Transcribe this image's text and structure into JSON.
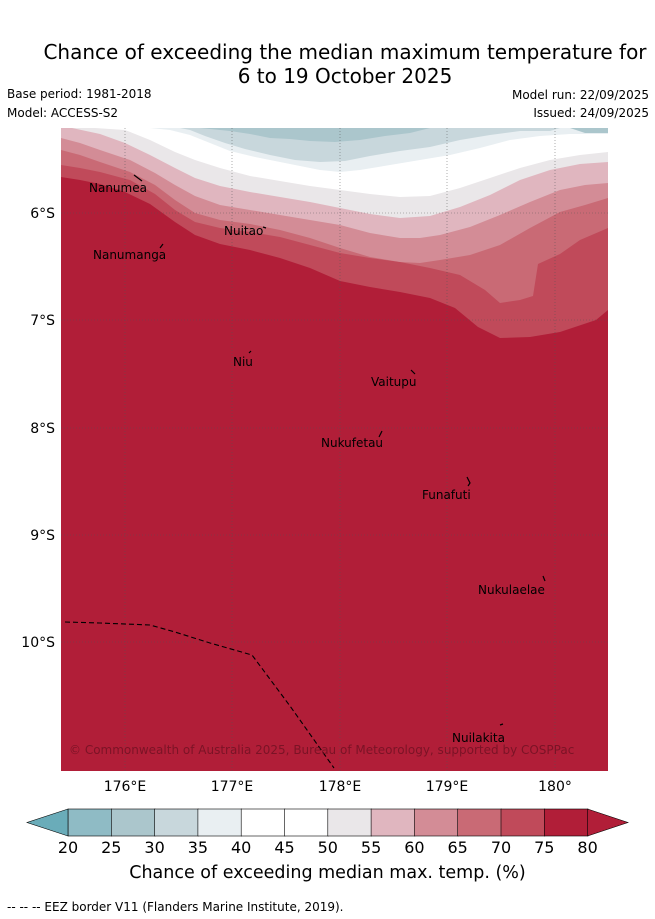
{
  "title": "Chance of exceeding the median maximum temperature for\n6 to 19 October 2025",
  "meta": {
    "base_period": "Base period: 1981-2018",
    "model": "Model: ACCESS-S2",
    "model_run": "Model run: 22/09/2025",
    "issued": "Issued: 24/09/2025"
  },
  "map": {
    "lon_ticks": [
      "176°E",
      "177°E",
      "178°E",
      "179°E",
      "180°"
    ],
    "lat_ticks": [
      "6°S",
      "7°S",
      "8°S",
      "9°S",
      "10°S"
    ],
    "places": [
      {
        "name": "Nanumea"
      },
      {
        "name": "Nanumanga"
      },
      {
        "name": "Nuitao"
      },
      {
        "name": "Niu"
      },
      {
        "name": "Vaitupu"
      },
      {
        "name": "Nukufetau"
      },
      {
        "name": "Funafuti"
      },
      {
        "name": "Nukulaelae"
      },
      {
        "name": "Nuilakita"
      }
    ],
    "copyright": "© Commonwealth of Australia 2025, Bureau of Meteorology, supported by COSPPac"
  },
  "colorbar": {
    "ticks": [
      "20",
      "25",
      "30",
      "35",
      "40",
      "45",
      "50",
      "55",
      "60",
      "65",
      "70",
      "75",
      "80"
    ],
    "colors": [
      "#6aacb9",
      "#8fbbc5",
      "#abc6cc",
      "#c8d7dc",
      "#e9eff2",
      "#ffffff",
      "#ffffff",
      "#eae7e9",
      "#e0b6bf",
      "#d38c96",
      "#c96a75",
      "#c04a5a",
      "#b11e38"
    ],
    "title": "Chance of exceeding median max. temp. (%)"
  },
  "footnote": "--  --  -- EEZ border V11 (Flanders Marine Institute, 2019)."
}
